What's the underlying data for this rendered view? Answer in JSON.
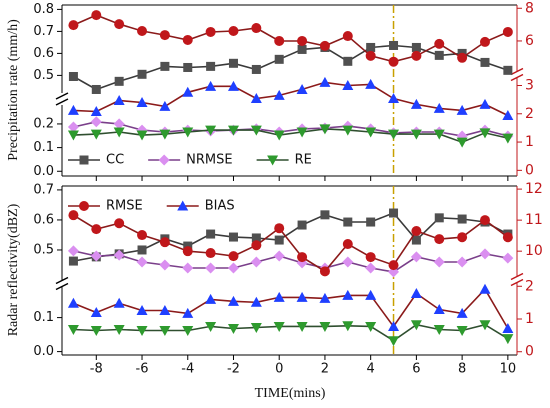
{
  "chart_data": [
    {
      "type": "line",
      "ylabel": "Precipitation rate (mm/h)",
      "x": [
        -9,
        -8,
        -7,
        -6,
        -5,
        -4,
        -3,
        -2,
        -1,
        0,
        1,
        2,
        3,
        4,
        5,
        6,
        7,
        8,
        9,
        10
      ],
      "xlim": [
        -9.5,
        10.4
      ],
      "xticks": [
        -8,
        -6,
        -4,
        -2,
        0,
        2,
        4,
        6,
        8,
        10
      ],
      "xtick_labels": false,
      "ylim": [
        [
          -0.02,
          0.28
        ],
        [
          0.42,
          0.82
        ]
      ],
      "yticks": [
        {
          "value": 0,
          "label": "0.0"
        },
        0.1,
        0.2,
        0.5,
        0.6,
        0.7,
        0.8
      ],
      "y2lim": [
        [
          -0.2,
          3.3
        ],
        [
          4.1,
          8.2
        ]
      ],
      "y2ticks": [
        0,
        1,
        2,
        3,
        6,
        8
      ],
      "y2color": "#c0171b",
      "vline_x": 5,
      "vline_color": "#c8a000",
      "legend": {
        "loc": "lower left",
        "axis": "y"
      },
      "series": [
        {
          "name": "CC",
          "marker": "square",
          "color": "#505050",
          "line_color": "#3a3a3a",
          "values": [
            0.495,
            0.436,
            0.473,
            0.505,
            0.541,
            0.536,
            0.541,
            0.555,
            0.527,
            0.573,
            0.618,
            0.627,
            0.564,
            0.627,
            0.636,
            0.627,
            0.591,
            0.6,
            0.559,
            0.523
          ]
        },
        {
          "name": "NRMSE",
          "marker": "diamond",
          "color": "#da8ff0",
          "line_color": "#7a3f8a",
          "values": [
            0.187,
            0.209,
            0.2,
            0.174,
            0.166,
            0.174,
            0.17,
            0.174,
            0.179,
            0.166,
            0.179,
            0.183,
            0.191,
            0.179,
            0.162,
            0.166,
            0.166,
            0.149,
            0.174,
            0.149
          ]
        },
        {
          "name": "RE",
          "marker": "tri-down",
          "color": "#2e9a2e",
          "line_color": "#2f4f2f",
          "values": [
            0.153,
            0.157,
            0.166,
            0.153,
            0.157,
            0.166,
            0.174,
            0.174,
            0.174,
            0.153,
            0.166,
            0.179,
            0.174,
            0.166,
            0.157,
            0.157,
            0.157,
            0.123,
            0.162,
            0.14
          ]
        },
        {
          "name": "RMSE",
          "marker": "circle",
          "color": "#c0171b",
          "line_color": "#8b1a1a",
          "axis": "y2",
          "values": [
            6.97,
            7.58,
            7.03,
            6.61,
            6.36,
            6.06,
            6.55,
            6.61,
            6.79,
            6.0,
            6.0,
            5.7,
            6.3,
            5.09,
            4.73,
            5.09,
            5.82,
            4.97,
            5.94,
            6.55
          ]
        },
        {
          "name": "BIAS",
          "marker": "tri-up",
          "color": "#1f3fff",
          "line_color": "#8b1a1a",
          "axis": "y2",
          "values": [
            2.12,
            2.08,
            2.47,
            2.4,
            2.26,
            2.76,
            2.97,
            2.97,
            2.54,
            2.65,
            2.86,
            3.11,
            3.0,
            3.04,
            2.54,
            2.33,
            2.19,
            2.12,
            2.33,
            1.94
          ]
        }
      ]
    },
    {
      "type": "line",
      "ylabel": "Radar reflectivity(dBZ)",
      "xlabel": "TIME(mins)",
      "x": [
        -9,
        -8,
        -7,
        -6,
        -5,
        -4,
        -3,
        -2,
        -1,
        0,
        1,
        2,
        3,
        4,
        5,
        6,
        7,
        8,
        9,
        10
      ],
      "xlim": [
        -9.5,
        10.4
      ],
      "xticks": [
        -8,
        -6,
        -4,
        -2,
        0,
        2,
        4,
        6,
        8,
        10
      ],
      "xtick_labels": true,
      "ylim": [
        [
          -0.01,
          0.19
        ],
        [
          0.4,
          0.713
        ]
      ],
      "yticks": [
        {
          "value": 0,
          "label": "0.0"
        },
        0.1,
        0.5,
        0.6,
        0.7
      ],
      "y2lim": [
        [
          -0.1,
          2.1
        ],
        [
          9.2,
          12.1
        ]
      ],
      "y2ticks": [
        0,
        1,
        2,
        10,
        11,
        12
      ],
      "y2color": "#c0171b",
      "vline_x": 5,
      "vline_color": "#c8a000",
      "legend": {
        "loc": "upper left",
        "axis": "y2"
      },
      "series": [
        {
          "name": "CC",
          "marker": "square",
          "color": "#505050",
          "line_color": "#3a3a3a",
          "values": [
            0.463,
            0.477,
            0.487,
            0.5,
            0.537,
            0.513,
            0.553,
            0.543,
            0.54,
            0.533,
            0.583,
            0.617,
            0.593,
            0.593,
            0.623,
            0.533,
            0.607,
            0.603,
            0.593,
            0.553
          ]
        },
        {
          "name": "NRMSE",
          "marker": "diamond",
          "color": "#da8ff0",
          "line_color": "#7a3f8a",
          "values": [
            0.497,
            0.48,
            0.483,
            0.46,
            0.45,
            0.44,
            0.44,
            0.44,
            0.46,
            0.48,
            0.457,
            0.44,
            0.46,
            0.44,
            0.427,
            0.477,
            0.46,
            0.46,
            0.487,
            0.473
          ]
        },
        {
          "name": "RE",
          "marker": "tri-down",
          "color": "#2e9a2e",
          "line_color": "#2f4f2f",
          "values": [
            0.065,
            0.062,
            0.065,
            0.062,
            0.062,
            0.062,
            0.074,
            0.068,
            0.071,
            0.074,
            0.074,
            0.074,
            0.076,
            0.074,
            0.032,
            0.079,
            0.065,
            0.062,
            0.079,
            0.038
          ]
        },
        {
          "name": "RMSE",
          "marker": "circle",
          "color": "#c0171b",
          "line_color": "#8b1a1a",
          "axis": "y2",
          "values": [
            11.16,
            10.71,
            10.9,
            10.52,
            10.29,
            10.0,
            9.94,
            9.84,
            10.19,
            10.74,
            9.81,
            9.35,
            10.23,
            9.81,
            9.55,
            10.65,
            10.39,
            10.45,
            11.0,
            10.45
          ]
        },
        {
          "name": "BIAS",
          "marker": "tri-up",
          "color": "#1f3fff",
          "line_color": "#8b1a1a",
          "axis": "y2",
          "values": [
            1.48,
            1.2,
            1.48,
            1.26,
            1.26,
            1.17,
            1.6,
            1.54,
            1.51,
            1.66,
            1.66,
            1.63,
            1.72,
            1.72,
            0.77,
            1.78,
            1.29,
            1.17,
            1.91,
            0.71
          ]
        }
      ]
    }
  ]
}
